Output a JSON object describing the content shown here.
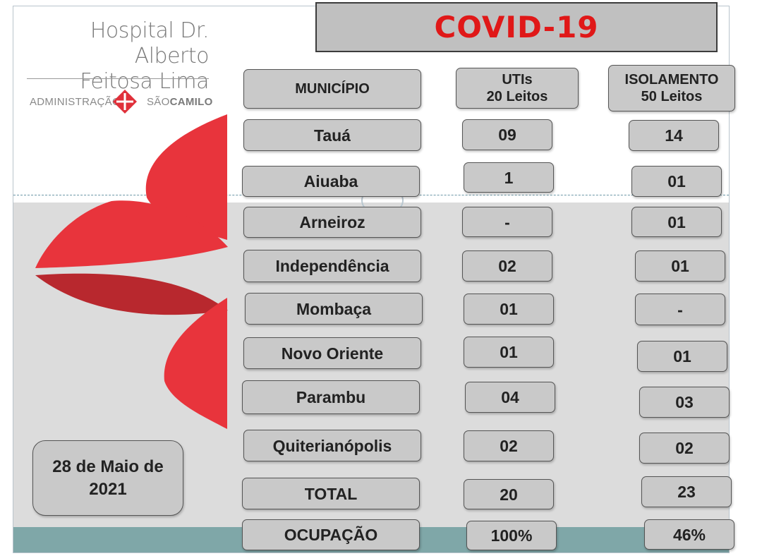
{
  "hospital": {
    "name_line1": "Hospital Dr. Alberto",
    "name_line2": "Feitosa Lima",
    "admin_label": "ADMINISTRAÇÃO",
    "sao_label": "SÃO",
    "camilo_label": "CAMILO",
    "logo_icon": "red-cross-diamond-icon"
  },
  "title": "COVID-19",
  "headers": {
    "municipio": "MUNICÍPIO",
    "utis_line1": "UTIs",
    "utis_line2": "20 Leitos",
    "isolamento_line1": "ISOLAMENTO",
    "isolamento_line2": "50 Leitos"
  },
  "rows": [
    {
      "municipio": "Tauá",
      "utis": "09",
      "isolamento": "14"
    },
    {
      "municipio": "Aiuaba",
      "utis": "1",
      "isolamento": "01"
    },
    {
      "municipio": "Arneiroz",
      "utis": "-",
      "isolamento": "01"
    },
    {
      "municipio": "Independência",
      "utis": "02",
      "isolamento": "01"
    },
    {
      "municipio": "Mombaça",
      "utis": "01",
      "isolamento": "-"
    },
    {
      "municipio": "Novo Oriente",
      "utis": "01",
      "isolamento": "01"
    },
    {
      "municipio": "Parambu",
      "utis": "04",
      "isolamento": "03"
    },
    {
      "municipio": "Quiterianópolis",
      "utis": "02",
      "isolamento": "02"
    },
    {
      "municipio": "TOTAL",
      "utis": "20",
      "isolamento": "23"
    },
    {
      "municipio": "OCUPAÇÃO",
      "utis": "100%",
      "isolamento": "46%"
    }
  ],
  "date_line1": "28 de Maio de",
  "date_line2": "2021",
  "colors": {
    "title_red": "#e01818",
    "cell_gray": "#c9c9c9",
    "petal_red": "#e8343c",
    "petal_dark": "#b8282e",
    "footer_teal": "#7fa7a8"
  }
}
